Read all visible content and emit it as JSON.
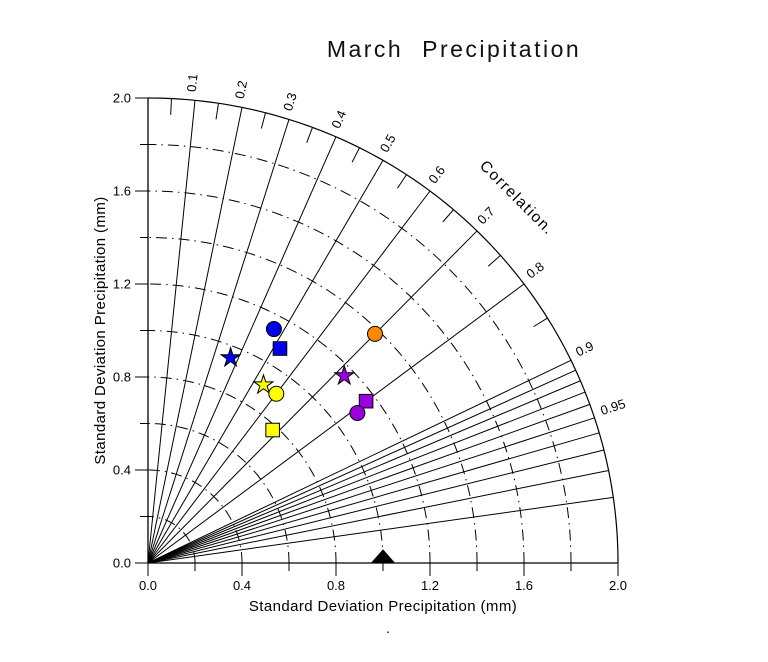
{
  "title": "March Precipitation",
  "stray_dot": ".",
  "chart_data": {
    "type": "taylor_diagram",
    "title": "March Precipitation",
    "xlabel": "Standard Deviation Precipitation (mm)",
    "ylabel": "Standard Deviation Precipitation (mm)",
    "correlation_axis_title": "Correlation.",
    "std_axis_range": [
      0.0,
      2.0
    ],
    "std_ticks_labeled": [
      0.0,
      0.4,
      0.8,
      1.2,
      1.6,
      2.0
    ],
    "std_tick_labels": [
      "0.0",
      "0.4",
      "0.8",
      "1.2",
      "1.6",
      "2.0"
    ],
    "std_minor_tick_step": 0.2,
    "std_arc_step": 0.2,
    "grid": {
      "std_arcs_style": "dash-dot",
      "outer_arc_style": "solid"
    },
    "correlation_rays": [
      0.1,
      0.2,
      0.3,
      0.4,
      0.5,
      0.6,
      0.7,
      0.8,
      0.9
    ],
    "correlation_fine_rays": [
      0.91,
      0.92,
      0.93,
      0.94,
      0.95,
      0.96,
      0.97,
      0.98,
      0.99
    ],
    "correlation_minor_arc_ticks": [
      0.05,
      0.15,
      0.25,
      0.35,
      0.45,
      0.55,
      0.65,
      0.75,
      0.85
    ],
    "correlation_labels": [
      {
        "value": 0.1,
        "label": "0.1"
      },
      {
        "value": 0.2,
        "label": "0.2"
      },
      {
        "value": 0.3,
        "label": "0.3"
      },
      {
        "value": 0.4,
        "label": "0.4"
      },
      {
        "value": 0.5,
        "label": "0.5"
      },
      {
        "value": 0.6,
        "label": "0.6"
      },
      {
        "value": 0.7,
        "label": "0.7"
      },
      {
        "value": 0.8,
        "label": "0.8"
      },
      {
        "value": 0.9,
        "label": "0.9"
      },
      {
        "value": 0.95,
        "label": "0.95"
      }
    ],
    "reference_point": {
      "symbol": "triangle",
      "color_name": "black",
      "color": "#000000",
      "std": 1.0,
      "correlation": 1.0
    },
    "points": [
      {
        "symbol": "star",
        "color_name": "blue",
        "color": "#0000EE",
        "std": 0.95,
        "correlation": 0.37
      },
      {
        "symbol": "circle",
        "color_name": "blue",
        "color": "#0000EE",
        "std": 1.14,
        "correlation": 0.47
      },
      {
        "symbol": "square",
        "color_name": "blue",
        "color": "#0000EE",
        "std": 1.08,
        "correlation": 0.52
      },
      {
        "symbol": "star",
        "color_name": "yellow",
        "color": "#FFFF00",
        "std": 0.91,
        "correlation": 0.54
      },
      {
        "symbol": "circle",
        "color_name": "yellow",
        "color": "#FFFF00",
        "std": 0.91,
        "correlation": 0.6
      },
      {
        "symbol": "square",
        "color_name": "yellow",
        "color": "#FFFF00",
        "std": 0.78,
        "correlation": 0.68
      },
      {
        "symbol": "circle",
        "color_name": "orange",
        "color": "#FF8800",
        "std": 1.38,
        "correlation": 0.7
      },
      {
        "symbol": "star",
        "color_name": "purple",
        "color": "#9900DD",
        "std": 1.16,
        "correlation": 0.72
      },
      {
        "symbol": "square",
        "color_name": "purple",
        "color": "#9900DD",
        "std": 1.16,
        "correlation": 0.8
      },
      {
        "symbol": "circle",
        "color_name": "purple",
        "color": "#9900DD",
        "std": 1.1,
        "correlation": 0.81
      }
    ],
    "line_color": "#000000"
  }
}
